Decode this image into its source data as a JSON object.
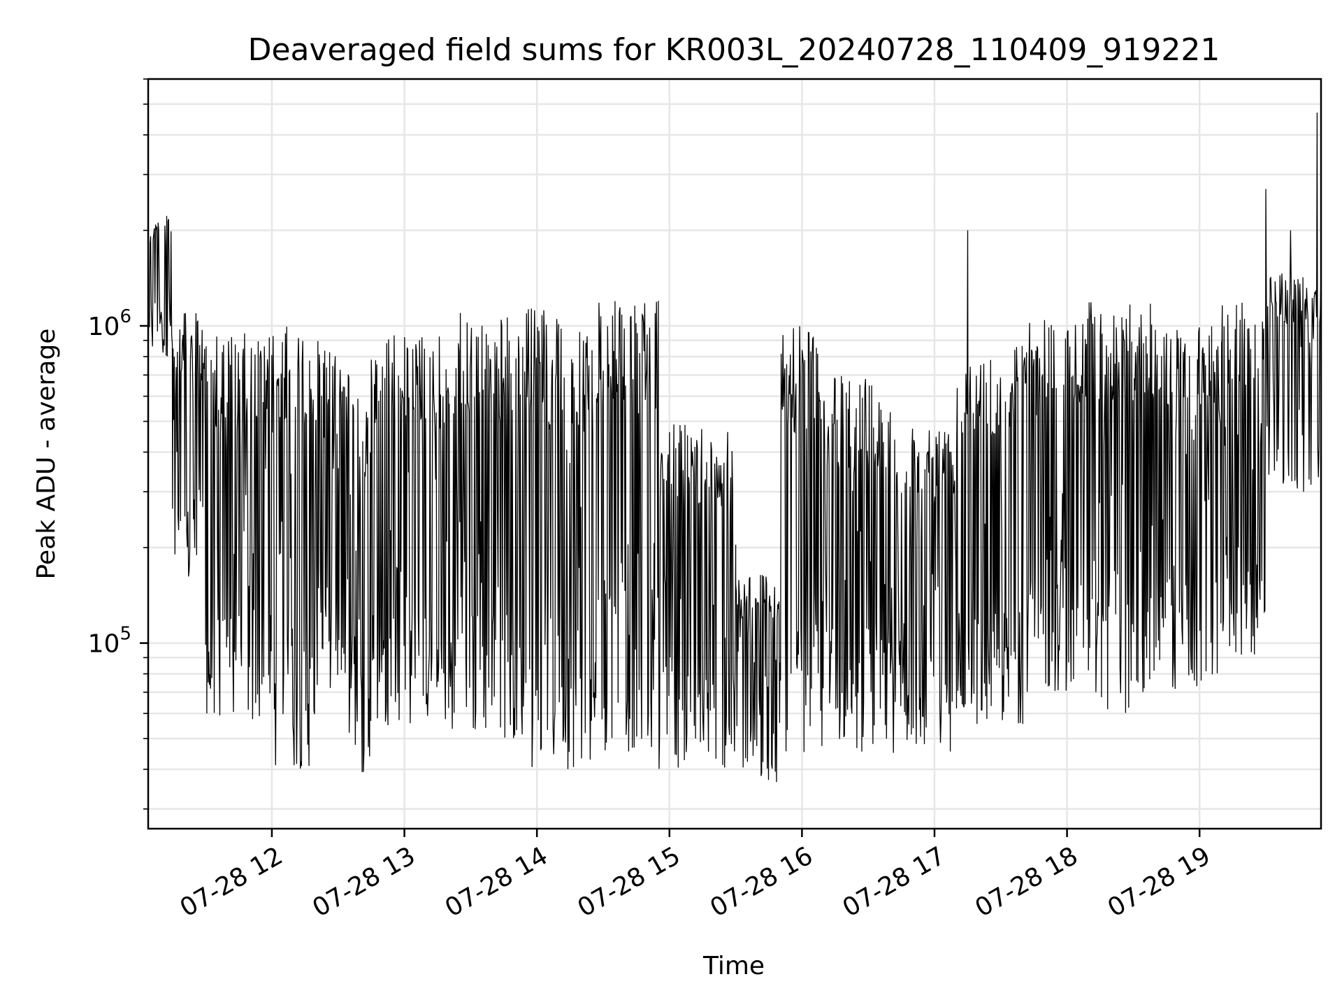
{
  "chart_data": {
    "type": "line",
    "title": "Deaveraged field sums for KR003L_20240728_110409_919221",
    "xlabel": "Time",
    "ylabel": "Peak ADU - average",
    "yscale": "log",
    "xlim": [
      "2024-07-28 11:04",
      "2024-07-28 19:55"
    ],
    "ylim": [
      26000,
      6000000
    ],
    "x_ticks": [
      "07-28 12",
      "07-28 13",
      "07-28 14",
      "07-28 15",
      "07-28 16",
      "07-28 17",
      "07-28 18",
      "07-28 19"
    ],
    "y_ticks": [
      {
        "value": 100000,
        "base": "10",
        "exp": "5"
      },
      {
        "value": 1000000,
        "base": "10",
        "exp": "6"
      }
    ],
    "grid": true,
    "line_color": "#000000",
    "segments": [
      {
        "start": "11:04",
        "end": "11:15",
        "low": 800000,
        "high": 2300000
      },
      {
        "start": "11:15",
        "end": "11:30",
        "low": 150000,
        "high": 1100000
      },
      {
        "start": "11:30",
        "end": "12:00",
        "low": 55000,
        "high": 950000
      },
      {
        "start": "12:00",
        "end": "12:20",
        "low": 40000,
        "high": 1000000
      },
      {
        "start": "12:20",
        "end": "12:35",
        "low": 70000,
        "high": 900000
      },
      {
        "start": "12:35",
        "end": "12:45",
        "low": 38000,
        "high": 600000
      },
      {
        "start": "12:45",
        "end": "13:20",
        "low": 55000,
        "high": 950000
      },
      {
        "start": "13:20",
        "end": "13:55",
        "low": 50000,
        "high": 1100000
      },
      {
        "start": "13:55",
        "end": "14:25",
        "low": 40000,
        "high": 1150000
      },
      {
        "start": "14:25",
        "end": "14:55",
        "low": 45000,
        "high": 1200000
      },
      {
        "start": "14:55",
        "end": "15:30",
        "low": 40000,
        "high": 500000
      },
      {
        "start": "15:30",
        "end": "15:50",
        "low": 35000,
        "high": 170000
      },
      {
        "start": "15:50",
        "end": "16:10",
        "low": 45000,
        "high": 1000000
      },
      {
        "start": "16:10",
        "end": "16:40",
        "low": 45000,
        "high": 700000
      },
      {
        "start": "16:40",
        "end": "17:10",
        "low": 45000,
        "high": 500000
      },
      {
        "start": "17:10",
        "end": "17:40",
        "low": 55000,
        "high": 900000
      },
      {
        "start": "17:40",
        "end": "18:10",
        "low": 70000,
        "high": 1100000
      },
      {
        "start": "18:10",
        "end": "18:40",
        "low": 60000,
        "high": 1200000
      },
      {
        "start": "18:40",
        "end": "19:10",
        "low": 70000,
        "high": 1000000
      },
      {
        "start": "19:10",
        "end": "19:30",
        "low": 90000,
        "high": 1200000
      },
      {
        "start": "19:30",
        "end": "19:55",
        "low": 300000,
        "high": 1500000
      }
    ],
    "spikes": [
      {
        "time": "17:15",
        "value": 2000000
      },
      {
        "time": "19:30",
        "value": 2700000
      },
      {
        "time": "19:53",
        "value": 4700000
      },
      {
        "time": "19:41",
        "value": 2000000
      }
    ]
  }
}
